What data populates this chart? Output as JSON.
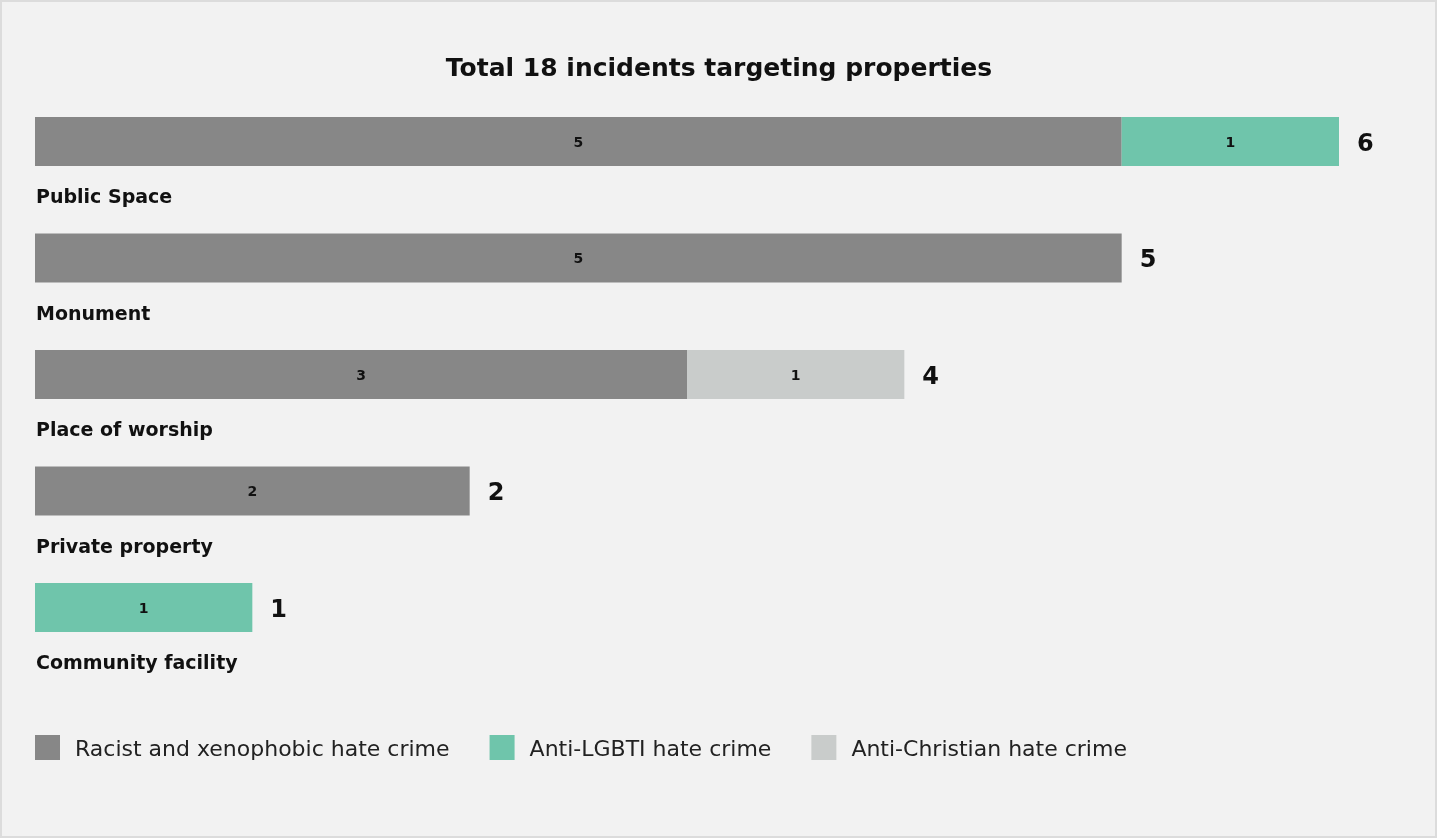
{
  "chart_data": {
    "type": "bar",
    "orientation": "horizontal",
    "stacked": true,
    "title": "Total 18 incidents targeting properties",
    "categories": [
      "Public Space",
      "Monument",
      "Place of worship",
      "Private property",
      "Community facility"
    ],
    "series": [
      {
        "name": "Racist and xenophobic hate crime",
        "color": "#878787",
        "values": [
          5,
          5,
          3,
          2,
          null
        ]
      },
      {
        "name": "Anti-LGBTI hate crime",
        "color": "#6fc5ab",
        "values": [
          1,
          null,
          null,
          null,
          1
        ]
      },
      {
        "name": "Anti-Christian hate crime",
        "color": "#c9cccb",
        "values": [
          null,
          null,
          1,
          null,
          null
        ]
      }
    ],
    "data_labels": true,
    "totals": [
      "6",
      "5",
      "4",
      "2",
      "1"
    ],
    "legend": "bottom"
  }
}
